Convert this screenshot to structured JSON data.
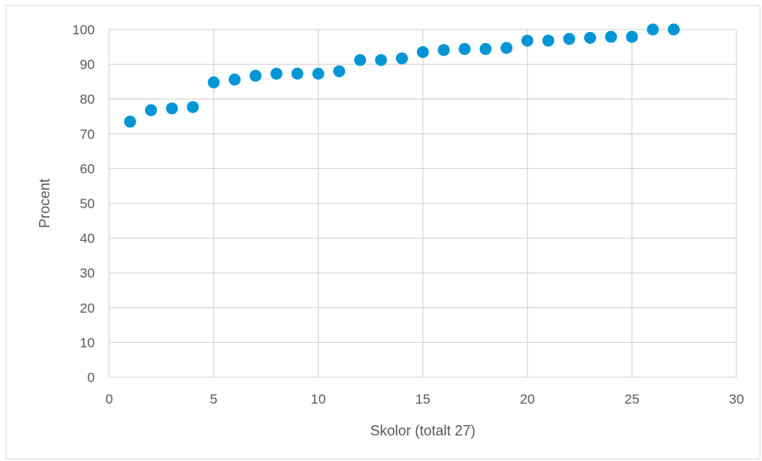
{
  "chart_data": {
    "type": "scatter",
    "title": "",
    "xlabel": "Skolor (totalt 27)",
    "ylabel": "Procent",
    "xlim": [
      0,
      30
    ],
    "ylim": [
      0,
      100
    ],
    "x_ticks": [
      0,
      5,
      10,
      15,
      20,
      25,
      30
    ],
    "y_ticks": [
      0,
      10,
      20,
      30,
      40,
      50,
      60,
      70,
      80,
      90,
      100
    ],
    "grid": true,
    "legend": "none",
    "color": "#0096d6",
    "series": [
      {
        "x": [
          1,
          2,
          3,
          4,
          5,
          6,
          7,
          8,
          9,
          10,
          11,
          12,
          13,
          14,
          15,
          16,
          17,
          18,
          19,
          20,
          21,
          22,
          23,
          24,
          25,
          26,
          27
        ],
        "y": [
          73.5,
          76.8,
          77.3,
          77.7,
          84.8,
          85.6,
          86.7,
          87.3,
          87.3,
          87.3,
          88.0,
          91.2,
          91.2,
          91.7,
          93.5,
          94.1,
          94.4,
          94.4,
          94.7,
          96.8,
          96.8,
          97.3,
          97.6,
          97.9,
          97.9,
          100,
          100
        ]
      }
    ]
  }
}
